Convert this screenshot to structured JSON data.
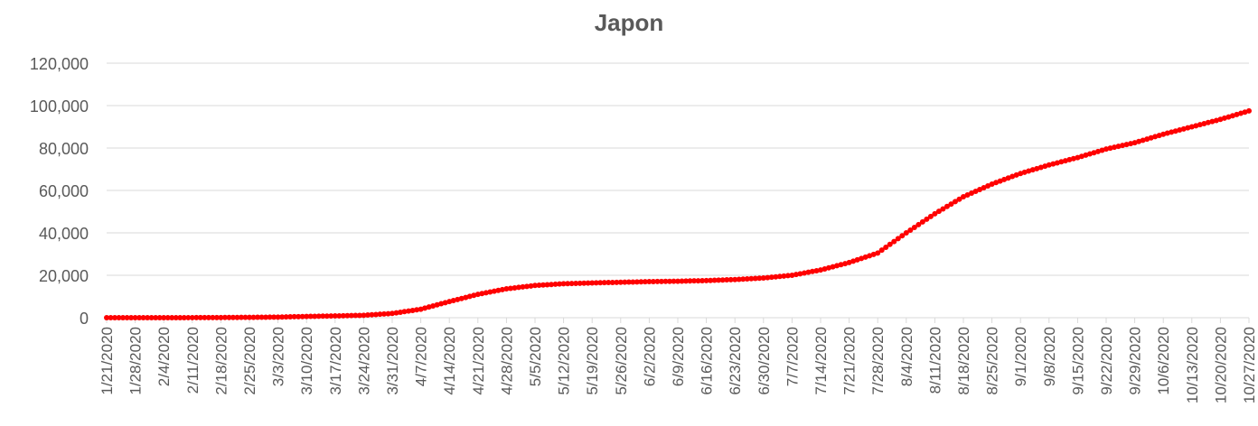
{
  "chart_data": {
    "type": "line",
    "title": "Japon",
    "xlabel": "",
    "ylabel": "",
    "ylim": [
      0,
      120000
    ],
    "y_ticks": [
      0,
      20000,
      40000,
      60000,
      80000,
      100000,
      120000
    ],
    "y_tick_labels": [
      "0",
      "20,000",
      "40,000",
      "60,000",
      "80,000",
      "100,000",
      "120,000"
    ],
    "x_start": "1/21/2020",
    "x_end": "10/27/2020",
    "x_tick_labels": [
      "1/21/2020",
      "1/28/2020",
      "2/4/2020",
      "2/11/2020",
      "2/18/2020",
      "2/25/2020",
      "3/3/2020",
      "3/10/2020",
      "3/17/2020",
      "3/24/2020",
      "3/31/2020",
      "4/7/2020",
      "4/14/2020",
      "4/21/2020",
      "4/28/2020",
      "5/5/2020",
      "5/12/2020",
      "5/19/2020",
      "5/26/2020",
      "6/2/2020",
      "6/9/2020",
      "6/16/2020",
      "6/23/2020",
      "6/30/2020",
      "7/7/2020",
      "7/14/2020",
      "7/21/2020",
      "7/28/2020",
      "8/4/2020",
      "8/11/2020",
      "8/18/2020",
      "8/25/2020",
      "9/1/2020",
      "9/8/2020",
      "9/15/2020",
      "9/22/2020",
      "9/29/2020",
      "10/6/2020",
      "10/13/2020",
      "10/20/2020",
      "10/27/2020"
    ],
    "grid": "horizontal",
    "legend": "none",
    "series": [
      {
        "color": "#ff0000",
        "marker": "circle",
        "points": [
          {
            "x": "1/21/2020",
            "y": 1
          },
          {
            "x": "1/28/2020",
            "y": 7
          },
          {
            "x": "2/4/2020",
            "y": 20
          },
          {
            "x": "2/11/2020",
            "y": 26
          },
          {
            "x": "2/18/2020",
            "y": 74
          },
          {
            "x": "2/25/2020",
            "y": 160
          },
          {
            "x": "3/3/2020",
            "y": 290
          },
          {
            "x": "3/10/2020",
            "y": 580
          },
          {
            "x": "3/17/2020",
            "y": 830
          },
          {
            "x": "3/24/2020",
            "y": 1130
          },
          {
            "x": "3/31/2020",
            "y": 2000
          },
          {
            "x": "4/7/2020",
            "y": 4000
          },
          {
            "x": "4/14/2020",
            "y": 7600
          },
          {
            "x": "4/21/2020",
            "y": 11000
          },
          {
            "x": "4/28/2020",
            "y": 13600
          },
          {
            "x": "5/5/2020",
            "y": 15200
          },
          {
            "x": "5/12/2020",
            "y": 16000
          },
          {
            "x": "5/19/2020",
            "y": 16400
          },
          {
            "x": "5/26/2020",
            "y": 16700
          },
          {
            "x": "6/2/2020",
            "y": 17000
          },
          {
            "x": "6/9/2020",
            "y": 17200
          },
          {
            "x": "6/16/2020",
            "y": 17500
          },
          {
            "x": "6/23/2020",
            "y": 18000
          },
          {
            "x": "6/30/2020",
            "y": 18700
          },
          {
            "x": "7/7/2020",
            "y": 20000
          },
          {
            "x": "7/14/2020",
            "y": 22500
          },
          {
            "x": "7/21/2020",
            "y": 26000
          },
          {
            "x": "7/28/2020",
            "y": 30500
          },
          {
            "x": "8/4/2020",
            "y": 40000
          },
          {
            "x": "8/11/2020",
            "y": 49000
          },
          {
            "x": "8/18/2020",
            "y": 57000
          },
          {
            "x": "8/25/2020",
            "y": 63000
          },
          {
            "x": "9/1/2020",
            "y": 68000
          },
          {
            "x": "9/8/2020",
            "y": 72000
          },
          {
            "x": "9/15/2020",
            "y": 75500
          },
          {
            "x": "9/22/2020",
            "y": 79500
          },
          {
            "x": "9/29/2020",
            "y": 82500
          },
          {
            "x": "10/6/2020",
            "y": 86500
          },
          {
            "x": "10/13/2020",
            "y": 90000
          },
          {
            "x": "10/20/2020",
            "y": 93500
          },
          {
            "x": "10/27/2020",
            "y": 97500
          }
        ]
      }
    ]
  }
}
